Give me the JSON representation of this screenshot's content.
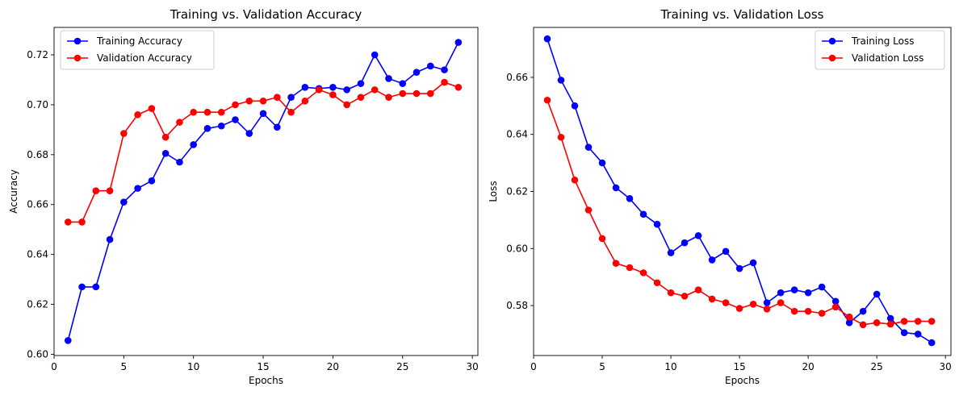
{
  "chart_data": [
    {
      "type": "line",
      "title": "Training vs. Validation Accuracy",
      "xlabel": "Epochs",
      "ylabel": "Accuracy",
      "xlim": [
        0,
        30.4
      ],
      "ylim": [
        0.5995,
        0.731
      ],
      "xticks": [
        0,
        5,
        10,
        15,
        20,
        25,
        30
      ],
      "yticks": [
        0.6,
        0.62,
        0.64,
        0.66,
        0.68,
        0.7,
        0.72
      ],
      "ytick_format": 2,
      "grid": false,
      "legend": "top-left",
      "x": [
        1,
        2,
        3,
        4,
        5,
        6,
        7,
        8,
        9,
        10,
        11,
        12,
        13,
        14,
        15,
        16,
        17,
        18,
        19,
        20,
        21,
        22,
        23,
        24,
        25,
        26,
        27,
        28,
        29
      ],
      "series": [
        {
          "name": "Training Accuracy",
          "color": "#0000ff",
          "values": [
            0.6055,
            0.627,
            0.627,
            0.646,
            0.661,
            0.6665,
            0.6695,
            0.6805,
            0.677,
            0.684,
            0.6905,
            0.6915,
            0.694,
            0.6885,
            0.6965,
            0.691,
            0.703,
            0.707,
            0.7065,
            0.707,
            0.706,
            0.7085,
            0.72,
            0.7105,
            0.7085,
            0.713,
            0.7155,
            0.714,
            0.725
          ]
        },
        {
          "name": "Validation Accuracy",
          "color": "#ff0000",
          "values": [
            0.653,
            0.653,
            0.6655,
            0.6655,
            0.6885,
            0.696,
            0.6985,
            0.687,
            0.693,
            0.697,
            0.697,
            0.697,
            0.7,
            0.7015,
            0.7015,
            0.703,
            0.697,
            0.7015,
            0.706,
            0.704,
            0.7,
            0.703,
            0.706,
            0.703,
            0.7045,
            0.7045,
            0.7045,
            0.709,
            0.707
          ]
        }
      ]
    },
    {
      "type": "line",
      "title": "Training vs. Validation Loss",
      "xlabel": "Epochs",
      "ylabel": "Loss",
      "xlim": [
        0,
        30.4
      ],
      "ylim": [
        0.5625,
        0.6775
      ],
      "xticks": [
        0,
        5,
        10,
        15,
        20,
        25,
        30
      ],
      "yticks": [
        0.58,
        0.6,
        0.62,
        0.64,
        0.66
      ],
      "ytick_format": 2,
      "grid": false,
      "legend": "top-right",
      "x": [
        1,
        2,
        3,
        4,
        5,
        6,
        7,
        8,
        9,
        10,
        11,
        12,
        13,
        14,
        15,
        16,
        17,
        18,
        19,
        20,
        21,
        22,
        23,
        24,
        25,
        26,
        27,
        28,
        29
      ],
      "series": [
        {
          "name": "Training Loss",
          "color": "#0000ff",
          "values": [
            0.6735,
            0.659,
            0.65,
            0.6355,
            0.63,
            0.6213,
            0.6175,
            0.612,
            0.6085,
            0.5985,
            0.602,
            0.6045,
            0.596,
            0.599,
            0.593,
            0.595,
            0.581,
            0.5845,
            0.5855,
            0.5845,
            0.5865,
            0.5815,
            0.574,
            0.578,
            0.584,
            0.5755,
            0.5705,
            0.57,
            0.567
          ]
        },
        {
          "name": "Validation Loss",
          "color": "#ff0000",
          "values": [
            0.652,
            0.639,
            0.624,
            0.6135,
            0.6035,
            0.5948,
            0.5933,
            0.5915,
            0.588,
            0.5845,
            0.5833,
            0.5855,
            0.5823,
            0.581,
            0.579,
            0.5805,
            0.5788,
            0.581,
            0.578,
            0.578,
            0.5773,
            0.5795,
            0.576,
            0.5733,
            0.574,
            0.5735,
            0.5745,
            0.5745,
            0.5745
          ]
        }
      ]
    }
  ]
}
